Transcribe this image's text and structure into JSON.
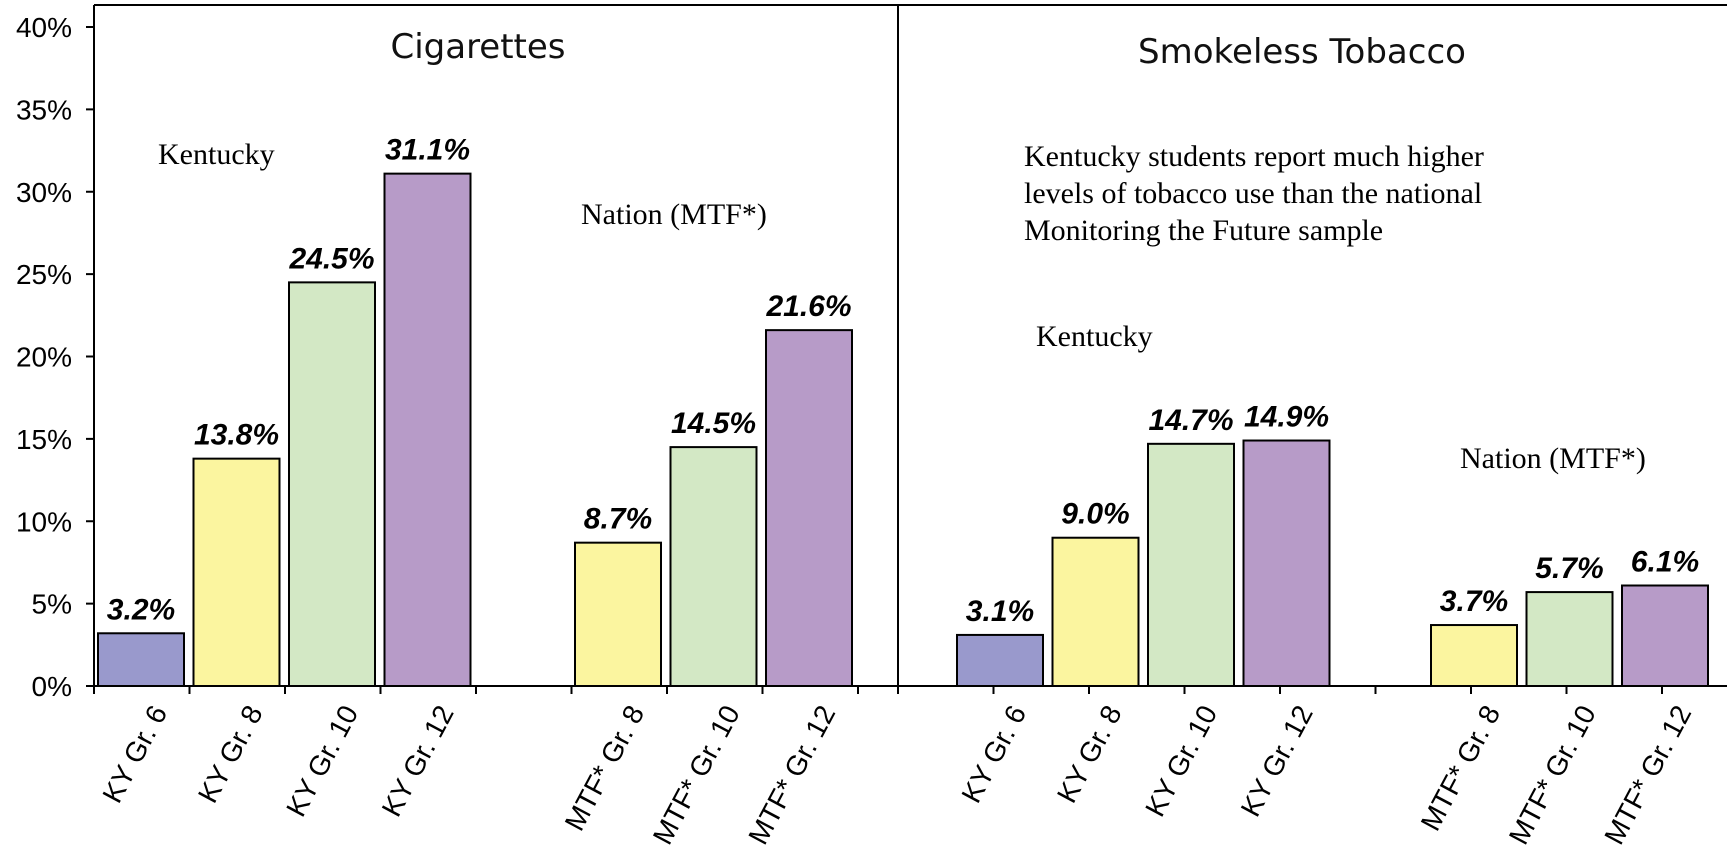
{
  "colors": {
    "grade6": "#9999cc",
    "grade8": "#fbf59f",
    "grade10": "#d3e8c5",
    "grade12": "#b79bc8"
  },
  "chart_data": {
    "type": "bar",
    "ylim": [
      0,
      40
    ],
    "yticks": [
      "0%",
      "5%",
      "10%",
      "15%",
      "20%",
      "25%",
      "30%",
      "35%",
      "40%"
    ],
    "legend": "none",
    "grid": false,
    "panels": [
      {
        "title": "Cigarettes",
        "annotations": [
          "Kentucky",
          "Nation (MTF*)"
        ],
        "groups": [
          {
            "bars": [
              {
                "category": "KY Gr. 6",
                "value": 3.2,
                "label": "3.2%",
                "grade": "grade6"
              },
              {
                "category": "KY Gr. 8",
                "value": 13.8,
                "label": "13.8%",
                "grade": "grade8"
              },
              {
                "category": "KY Gr. 10",
                "value": 24.5,
                "label": "24.5%",
                "grade": "grade10"
              },
              {
                "category": "KY Gr. 12",
                "value": 31.1,
                "label": "31.1%",
                "grade": "grade12"
              }
            ]
          },
          {
            "bars": [
              {
                "category": "MTF* Gr. 8",
                "value": 8.7,
                "label": "8.7%",
                "grade": "grade8"
              },
              {
                "category": "MTF* Gr. 10",
                "value": 14.5,
                "label": "14.5%",
                "grade": "grade10"
              },
              {
                "category": "MTF* Gr. 12",
                "value": 21.6,
                "label": "21.6%",
                "grade": "grade12"
              }
            ]
          }
        ]
      },
      {
        "title": "Smokeless Tobacco",
        "annotations": [
          "Kentucky",
          "Nation (MTF*)"
        ],
        "note_lines": [
          "Kentucky students report much higher",
          "levels of tobacco use than the national",
          "Monitoring the Future sample"
        ],
        "groups": [
          {
            "bars": [
              {
                "category": "KY Gr. 6",
                "value": 3.1,
                "label": "3.1%",
                "grade": "grade6"
              },
              {
                "category": "KY Gr. 8",
                "value": 9.0,
                "label": "9.0%",
                "grade": "grade8"
              },
              {
                "category": "KY Gr. 10",
                "value": 14.7,
                "label": "14.7%",
                "grade": "grade10"
              },
              {
                "category": "KY Gr. 12",
                "value": 14.9,
                "label": "14.9%",
                "grade": "grade12"
              }
            ]
          },
          {
            "bars": [
              {
                "category": "MTF* Gr. 8",
                "value": 3.7,
                "label": "3.7%",
                "grade": "grade8"
              },
              {
                "category": "MTF* Gr. 10",
                "value": 5.7,
                "label": "5.7%",
                "grade": "grade10"
              },
              {
                "category": "MTF* Gr. 12",
                "value": 6.1,
                "label": "6.1%",
                "grade": "grade12"
              }
            ]
          }
        ]
      }
    ]
  }
}
